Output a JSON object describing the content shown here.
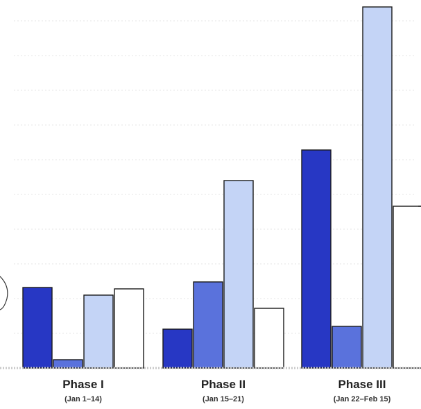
{
  "chart_data": {
    "type": "bar",
    "categories": [
      "Phase I",
      "Phase II",
      "Phase III"
    ],
    "category_sublabels": [
      "(Jan 1–14)",
      "(Jan 15–21)",
      "(Jan 22–Feb 15)"
    ],
    "series": [
      {
        "color": "#2737c4",
        "values": [
          116,
          56,
          314
        ]
      },
      {
        "color": "#5a72dc",
        "values": [
          12,
          124,
          60
        ]
      },
      {
        "color": "#c4d4f6",
        "values": [
          105,
          270,
          520
        ]
      },
      {
        "color": "#ffffff",
        "values": [
          114,
          86,
          233
        ]
      }
    ],
    "ylim": [
      0,
      525
    ],
    "grid": true
  }
}
